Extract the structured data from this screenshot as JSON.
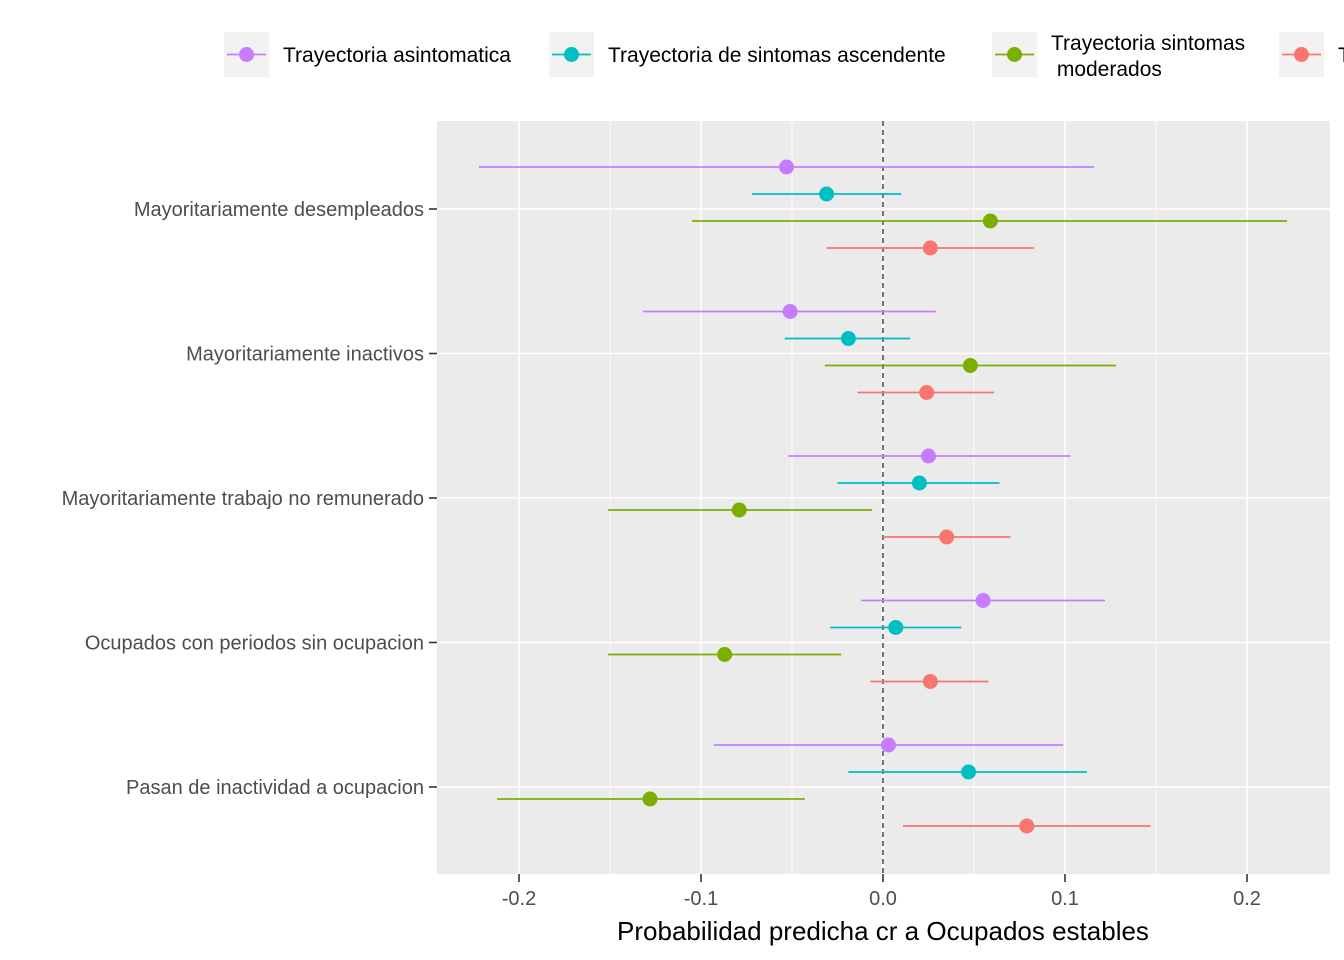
{
  "chart_data": {
    "type": "scatter",
    "subtype": "dot-and-whisker",
    "xlabel": "Probabilidad predicha cr a Ocupados estables",
    "ylabel": "",
    "xlim": [
      -0.245,
      0.245
    ],
    "xticks": [
      -0.2,
      -0.1,
      0.0,
      0.1,
      0.2
    ],
    "xtick_labels": [
      "-0.2",
      "-0.1",
      "0.0",
      "0.1",
      "0.2"
    ],
    "reference_line": 0,
    "grid": true,
    "legend_position": "top",
    "categories": [
      "Mayoritariamente desempleados",
      "Mayoritariamente inactivos",
      "Mayoritariamente trabajo no remunerado",
      "Ocupados con periodos sin ocupacion",
      "Pasan de inactividad a ocupacion"
    ],
    "series": [
      {
        "name": "Trayectoria asintomatica",
        "color": "#C77CFF",
        "estimate": [
          -0.053,
          -0.051,
          0.025,
          0.055,
          0.003
        ],
        "lower": [
          -0.222,
          -0.132,
          -0.052,
          -0.012,
          -0.093
        ],
        "upper": [
          0.116,
          0.029,
          0.103,
          0.122,
          0.099
        ]
      },
      {
        "name": "Trayectoria de sintomas ascendente",
        "color": "#00BFC4",
        "estimate": [
          -0.031,
          -0.019,
          0.02,
          0.007,
          0.047
        ],
        "lower": [
          -0.072,
          -0.054,
          -0.025,
          -0.029,
          -0.019
        ],
        "upper": [
          0.01,
          0.015,
          0.064,
          0.043,
          0.112
        ]
      },
      {
        "name": "Trayectoria sintomas moderados",
        "name_lines": [
          "Trayectoria sintomas",
          " moderados"
        ],
        "color": "#7CAE00",
        "estimate": [
          0.059,
          0.048,
          -0.079,
          -0.087,
          -0.128
        ],
        "lower": [
          -0.105,
          -0.032,
          -0.151,
          -0.151,
          -0.212
        ],
        "upper": [
          0.222,
          0.128,
          -0.006,
          -0.023,
          -0.043
        ]
      },
      {
        "name": "T",
        "color": "#F8766D",
        "estimate": [
          0.026,
          0.024,
          0.035,
          0.026,
          0.079
        ],
        "lower": [
          -0.031,
          -0.014,
          0.0,
          -0.007,
          0.011
        ],
        "upper": [
          0.083,
          0.061,
          0.07,
          0.058,
          0.147
        ]
      }
    ]
  }
}
